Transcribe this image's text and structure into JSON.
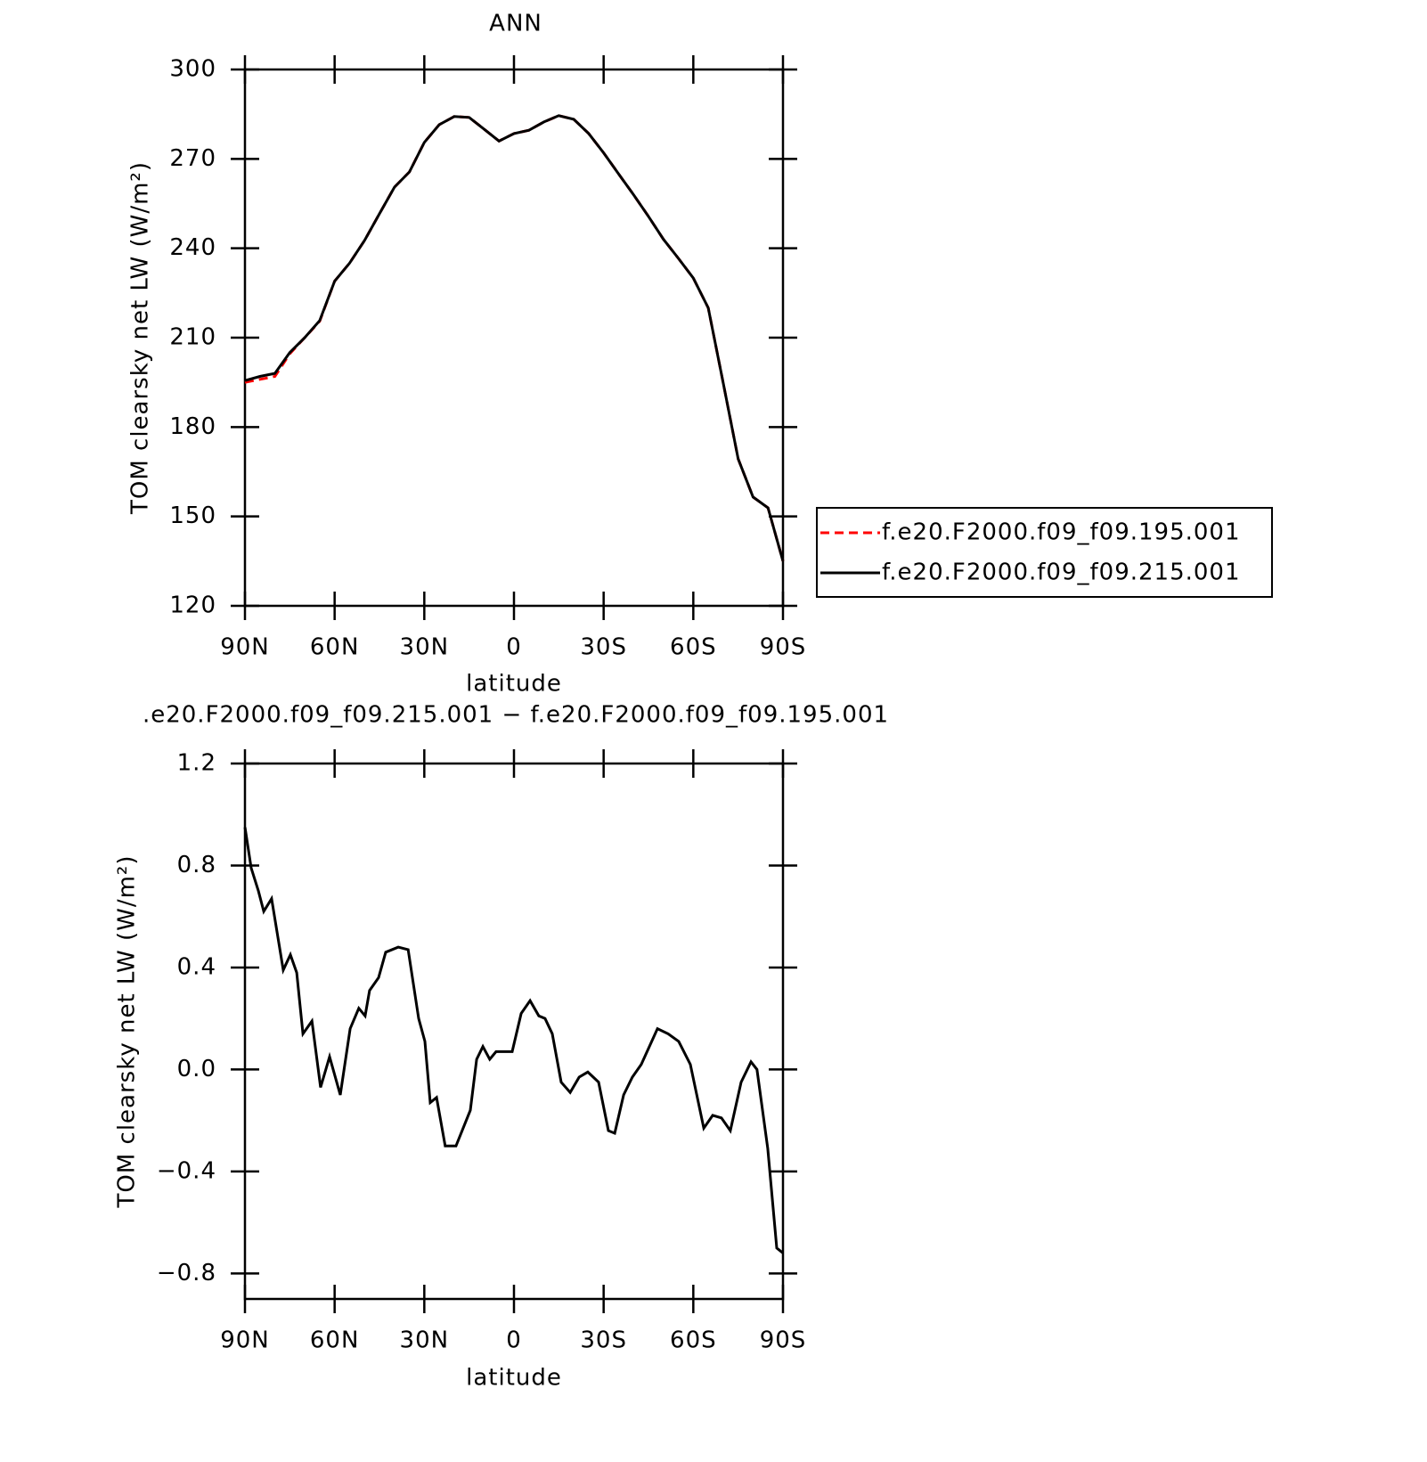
{
  "chart_data": [
    {
      "type": "line",
      "title": "ANN",
      "xlabel": "latitude",
      "ylabel": "TOM clearsky net LW (W/m²)",
      "x": [
        90,
        85,
        80,
        75,
        70,
        65,
        60,
        55,
        50,
        45,
        40,
        35,
        30,
        25,
        20,
        15,
        10,
        5,
        0,
        -5,
        -10,
        -15,
        -20,
        -25,
        -30,
        -35,
        -40,
        -45,
        -50,
        -55,
        -60,
        -65,
        -70,
        -75,
        -80,
        -85,
        -90
      ],
      "series": [
        {
          "name": "f.e20.F2000.f09_f09.195.001",
          "color": "#ff0000",
          "linestyle": "dashed",
          "values": [
            195,
            196,
            197,
            204.6,
            210,
            215.5,
            229,
            235,
            242.6,
            251.6,
            260.5,
            265.6,
            275.5,
            281.5,
            284.2,
            283.9,
            280,
            276,
            278.5,
            279.6,
            282.4,
            284.5,
            283.3,
            278.5,
            272,
            265,
            258,
            250.7,
            243,
            236.6,
            230,
            220,
            194.8,
            169.3,
            156.5,
            152.9,
            135
          ]
        },
        {
          "name": "f.e20.F2000.f09_f09.215.001",
          "color": "#000000",
          "linestyle": "solid",
          "values": [
            195.6,
            197,
            198,
            205,
            210,
            215.7,
            229,
            235,
            242.6,
            251.6,
            260.5,
            265.6,
            275.5,
            281.5,
            284.2,
            283.9,
            280,
            276,
            278.5,
            279.6,
            282.4,
            284.5,
            283.3,
            278.5,
            272,
            265,
            258,
            250.7,
            243,
            236.6,
            230,
            220,
            194.8,
            169.3,
            156.5,
            152.9,
            135
          ]
        }
      ],
      "xlim": [
        90,
        -90
      ],
      "xticks": [
        {
          "value": 90,
          "label": "90N"
        },
        {
          "value": 60,
          "label": "60N"
        },
        {
          "value": 30,
          "label": "30N"
        },
        0,
        {
          "value": -30,
          "label": "30S"
        },
        {
          "value": -60,
          "label": "60S"
        },
        {
          "value": -90,
          "label": "90S"
        }
      ],
      "ylim": [
        120,
        300
      ],
      "yticks": [
        120,
        150,
        180,
        210,
        240,
        270,
        300
      ],
      "legend": "right"
    },
    {
      "type": "line",
      "title": ".e20.F2000.f09_f09.215.001 − f.e20.F2000.f09_f09.195.001",
      "xlabel": "latitude",
      "ylabel": "TOM clearsky net LW (W/m²)",
      "x": [
        90,
        87.9,
        85.5,
        83.7,
        81.1,
        77.2,
        74.8,
        72.7,
        70.6,
        67.6,
        64.7,
        61.7,
        58.1,
        54.8,
        51.9,
        49.8,
        48.3,
        45.3,
        42.9,
        38.7,
        35.4,
        31.9,
        29.8,
        28,
        25.9,
        23,
        19.4,
        14.6,
        12.5,
        10.4,
        8.1,
        6,
        0.6,
        -2.4,
        -5.4,
        -8.3,
        -10.4,
        -12.8,
        -15.8,
        -18.8,
        -21.8,
        -24.7,
        -28.3,
        -31.6,
        -33.7,
        -36.7,
        -39.6,
        -42.6,
        -48,
        -51.6,
        -55.1,
        -59,
        -63.5,
        -66.5,
        -69.4,
        -72.4,
        -76,
        -79.3,
        -81.3,
        -84.9,
        -87.9,
        -90
      ],
      "values": [
        0.95,
        0.79,
        0.7,
        0.62,
        0.67,
        0.39,
        0.45,
        0.38,
        0.14,
        0.19,
        -0.07,
        0.05,
        -0.1,
        0.16,
        0.24,
        0.21,
        0.31,
        0.36,
        0.46,
        0.48,
        0.47,
        0.2,
        0.11,
        -0.13,
        -0.11,
        -0.3,
        -0.3,
        -0.16,
        0.04,
        0.09,
        0.04,
        0.07,
        0.07,
        0.22,
        0.27,
        0.21,
        0.2,
        0.14,
        -0.05,
        -0.09,
        -0.03,
        -0.01,
        -0.05,
        -0.24,
        -0.25,
        -0.1,
        -0.03,
        0.02,
        0.16,
        0.14,
        0.11,
        0.02,
        -0.23,
        -0.18,
        -0.19,
        -0.24,
        -0.05,
        0.03,
        0,
        -0.31,
        -0.7,
        -0.72
      ],
      "color": "#000000",
      "xlim": [
        90,
        -90
      ],
      "xticks": [
        {
          "value": 90,
          "label": "90N"
        },
        {
          "value": 60,
          "label": "60N"
        },
        {
          "value": 30,
          "label": "30N"
        },
        0,
        {
          "value": -30,
          "label": "30S"
        },
        {
          "value": -60,
          "label": "60S"
        },
        {
          "value": -90,
          "label": "90S"
        }
      ],
      "ylim": [
        -0.9,
        1.2
      ],
      "yticks": [
        1.2,
        0.8,
        0.4,
        {
          "value": 0,
          "label": "0.0"
        },
        {
          "value": -0.4,
          "label": "−0.4"
        },
        {
          "value": -0.8,
          "label": "−0.8"
        }
      ]
    }
  ]
}
